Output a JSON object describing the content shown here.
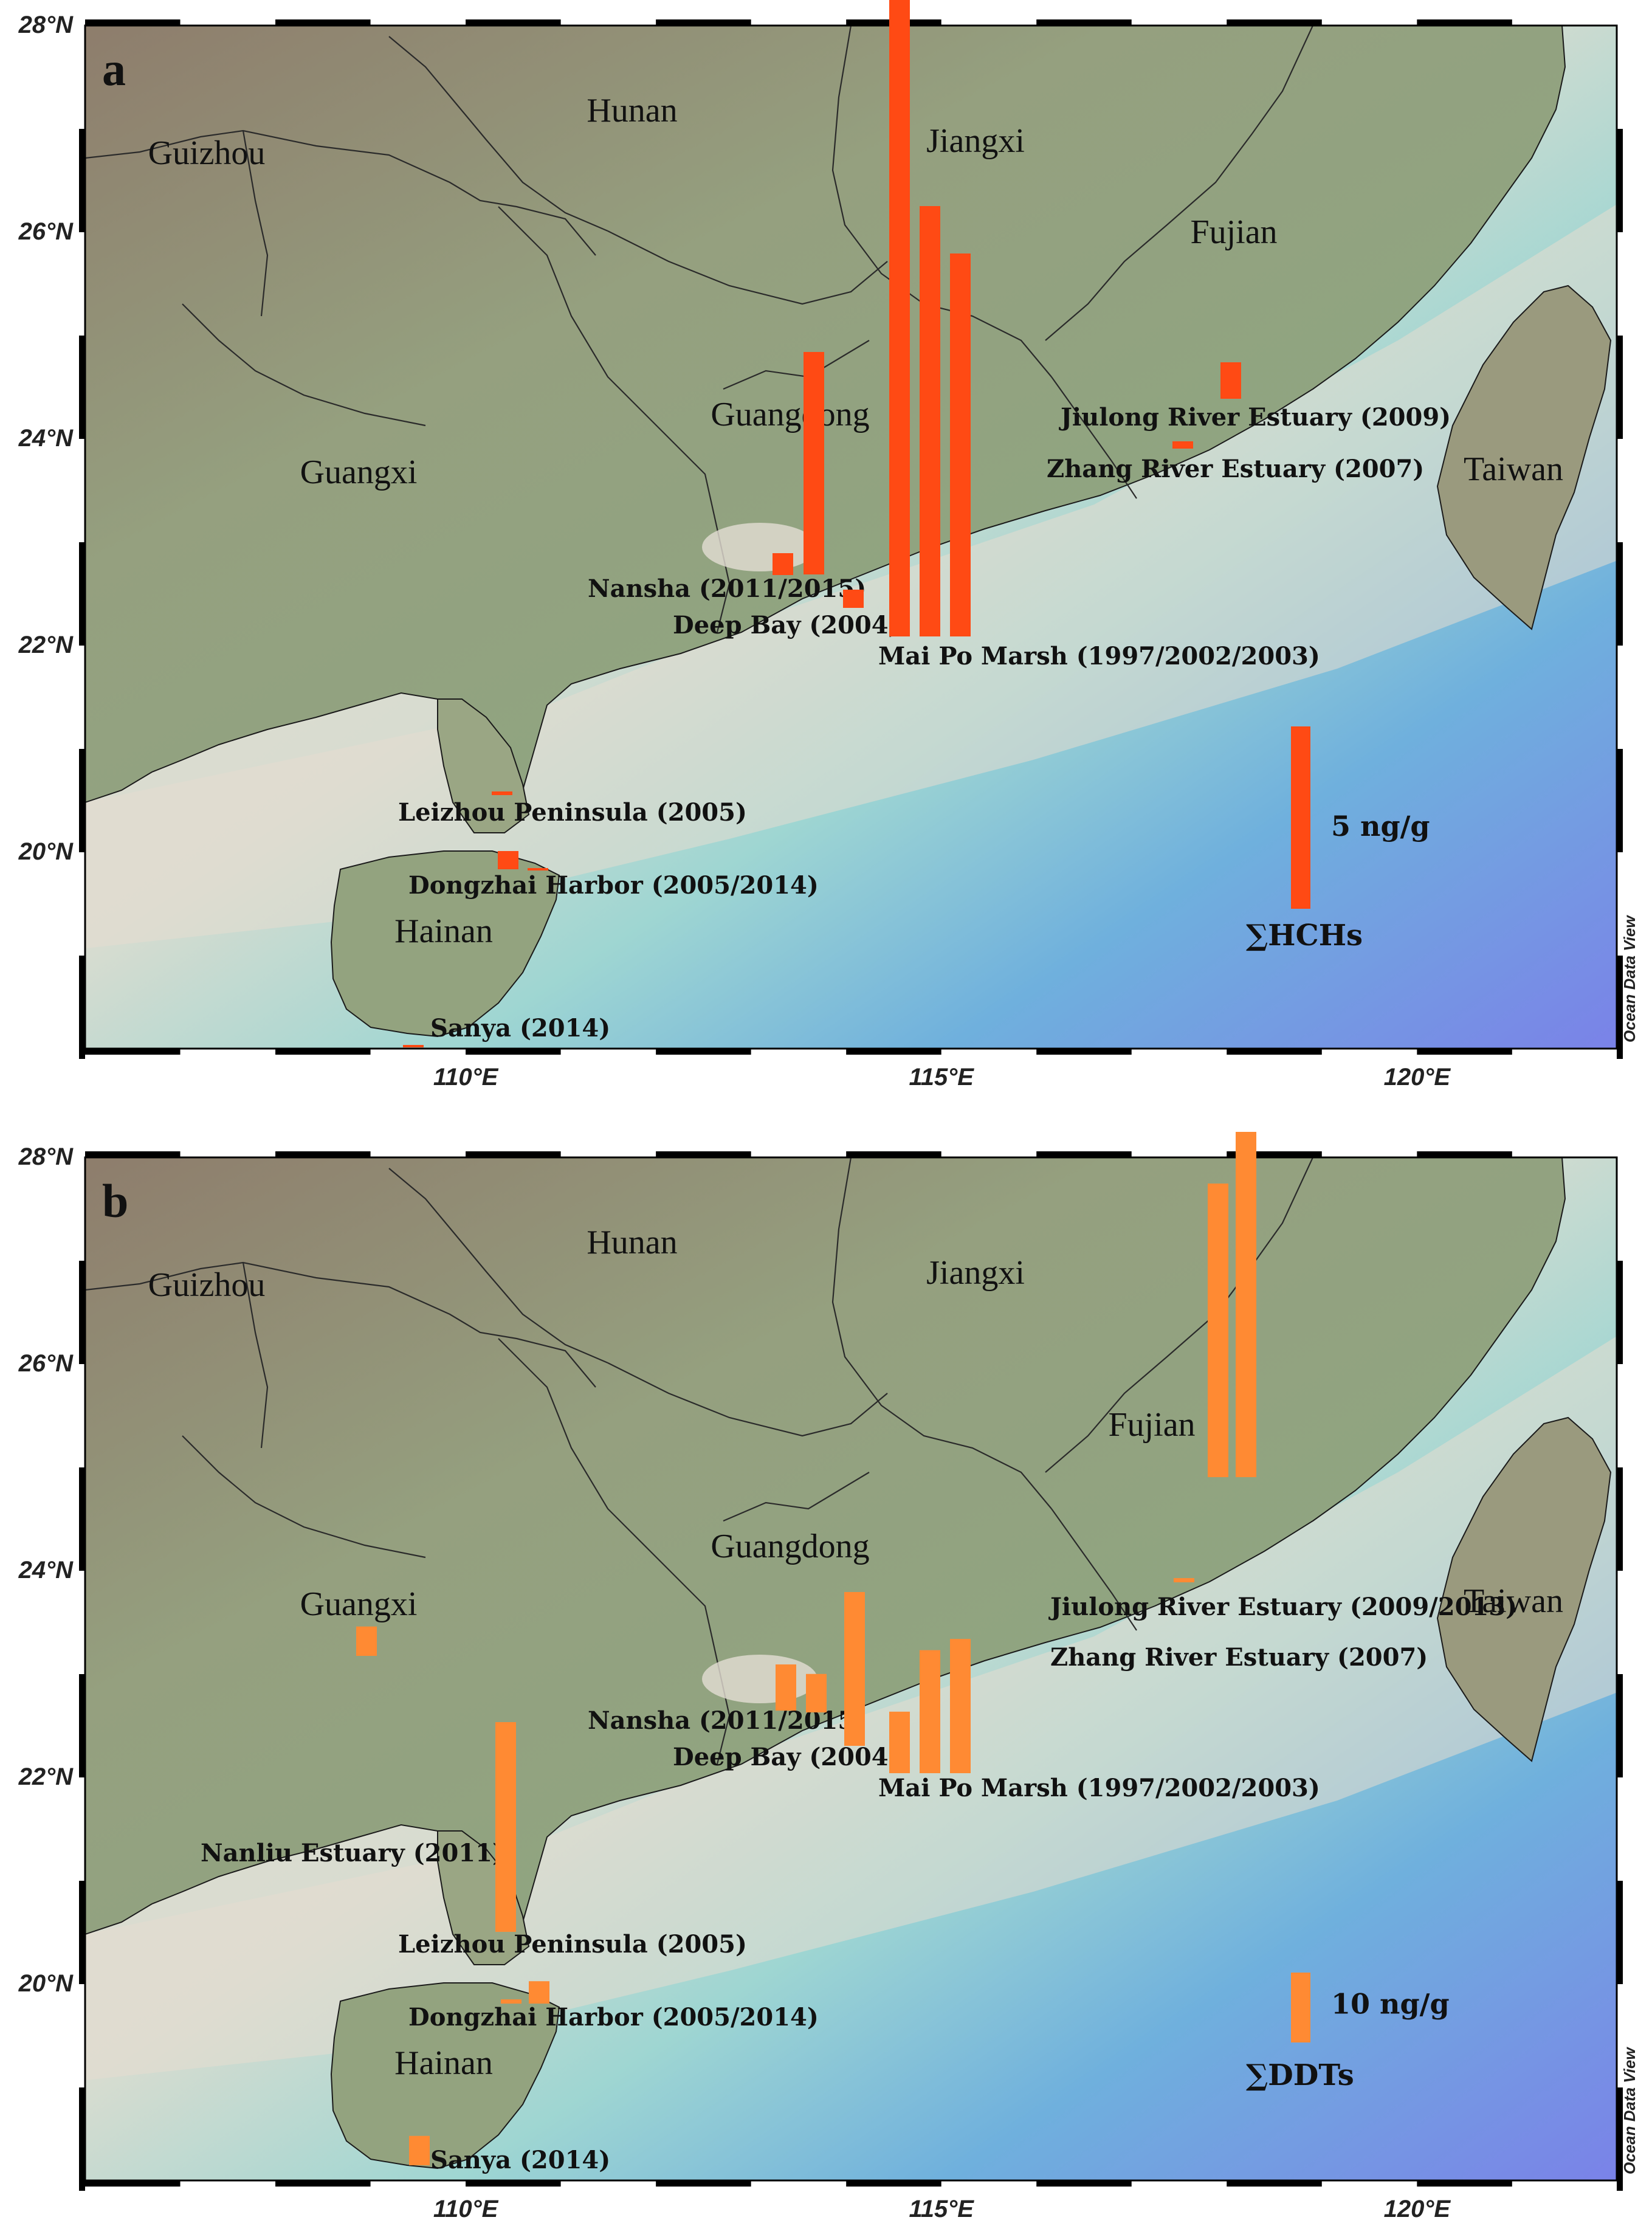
{
  "panels": [
    {
      "id": "a",
      "letter": "a",
      "bar_color": "#ff4a14",
      "credit": "Ocean Data View",
      "lat_ticks": [
        "28°N",
        "26°N",
        "24°N",
        "22°N",
        "20°N"
      ],
      "lon_ticks": [
        "110°E",
        "115°E",
        "120°E"
      ],
      "regions": [
        "Guizhou",
        "Hunan",
        "Jiangxi",
        "Fujian",
        "Guangdong",
        "Guangxi",
        "Taiwan",
        "Hainan"
      ],
      "sites": [
        "Jiulong River Estuary (2009)",
        "Zhang River Estuary (2007)",
        "Nansha (2011/2015)",
        "Deep Bay (2004)",
        "Mai Po Marsh (1997/2002/2003)",
        "Leizhou Peninsula (2005)",
        "Dongzhai Harbor (2005/2014)",
        "Sanya (2014)"
      ],
      "scale": {
        "value_label": "5 ng/g",
        "compound": "∑HCHs",
        "value_ng_g": 5
      },
      "bars": [
        {
          "site": "Nansha",
          "value": 0.6
        },
        {
          "site": "Nansha",
          "value": 6.1
        },
        {
          "site": "Deep Bay",
          "value": 0.5
        },
        {
          "site": "Mai Po Marsh",
          "value": 30.4
        },
        {
          "site": "Mai Po Marsh",
          "value": 11.8
        },
        {
          "site": "Mai Po Marsh",
          "value": 10.5
        },
        {
          "site": "Jiulong River Estuary",
          "value": 1.0
        },
        {
          "site": "Zhang River Estuary",
          "value": 0.2
        },
        {
          "site": "Leizhou Peninsula",
          "value": 0.1
        },
        {
          "site": "Dongzhai Harbor",
          "value": 0.5
        },
        {
          "site": "Dongzhai Harbor",
          "value": 0.05
        },
        {
          "site": "Sanya",
          "value": 0.05
        }
      ]
    },
    {
      "id": "b",
      "letter": "b",
      "bar_color": "#ff8a33",
      "credit": "Ocean Data View",
      "lat_ticks": [
        "28°N",
        "26°N",
        "24°N",
        "22°N",
        "20°N"
      ],
      "lon_ticks": [
        "110°E",
        "115°E",
        "120°E"
      ],
      "regions": [
        "Guizhou",
        "Hunan",
        "Jiangxi",
        "Fujian",
        "Guangdong",
        "Guangxi",
        "Taiwan",
        "Hainan"
      ],
      "sites": [
        "Jiulong River Estuary (2009/2013)",
        "Zhang River Estuary (2007)",
        "Nansha (2011/2015)",
        "Deep Bay (2004)",
        "Mai Po Marsh (1997/2002/2003)",
        "Nanliu Estuary (2011)",
        "Leizhou Peninsula (2005)",
        "Dongzhai Harbor (2005/2014)",
        "Sanya (2014)"
      ],
      "scale": {
        "value_label": "10 ng/g",
        "compound": "∑DDTs",
        "value_ng_g": 10
      },
      "bars": [
        {
          "site": "Nansha",
          "value": 6.6
        },
        {
          "site": "Nansha",
          "value": 5.5
        },
        {
          "site": "Deep Bay",
          "value": 22.0
        },
        {
          "site": "Mai Po Marsh",
          "value": 8.8
        },
        {
          "site": "Mai Po Marsh",
          "value": 17.6
        },
        {
          "site": "Mai Po Marsh",
          "value": 19.2
        },
        {
          "site": "Jiulong River Estuary",
          "value": 42.0
        },
        {
          "site": "Jiulong River Estuary",
          "value": 55.0
        },
        {
          "site": "Zhang River Estuary",
          "value": 0.6
        },
        {
          "site": "Nanliu Estuary",
          "value": 4.2
        },
        {
          "site": "Leizhou Peninsula",
          "value": 30.0
        },
        {
          "site": "Dongzhai Harbor",
          "value": 0.6
        },
        {
          "site": "Dongzhai Harbor",
          "value": 3.2
        },
        {
          "site": "Sanya",
          "value": 4.2
        }
      ]
    }
  ]
}
